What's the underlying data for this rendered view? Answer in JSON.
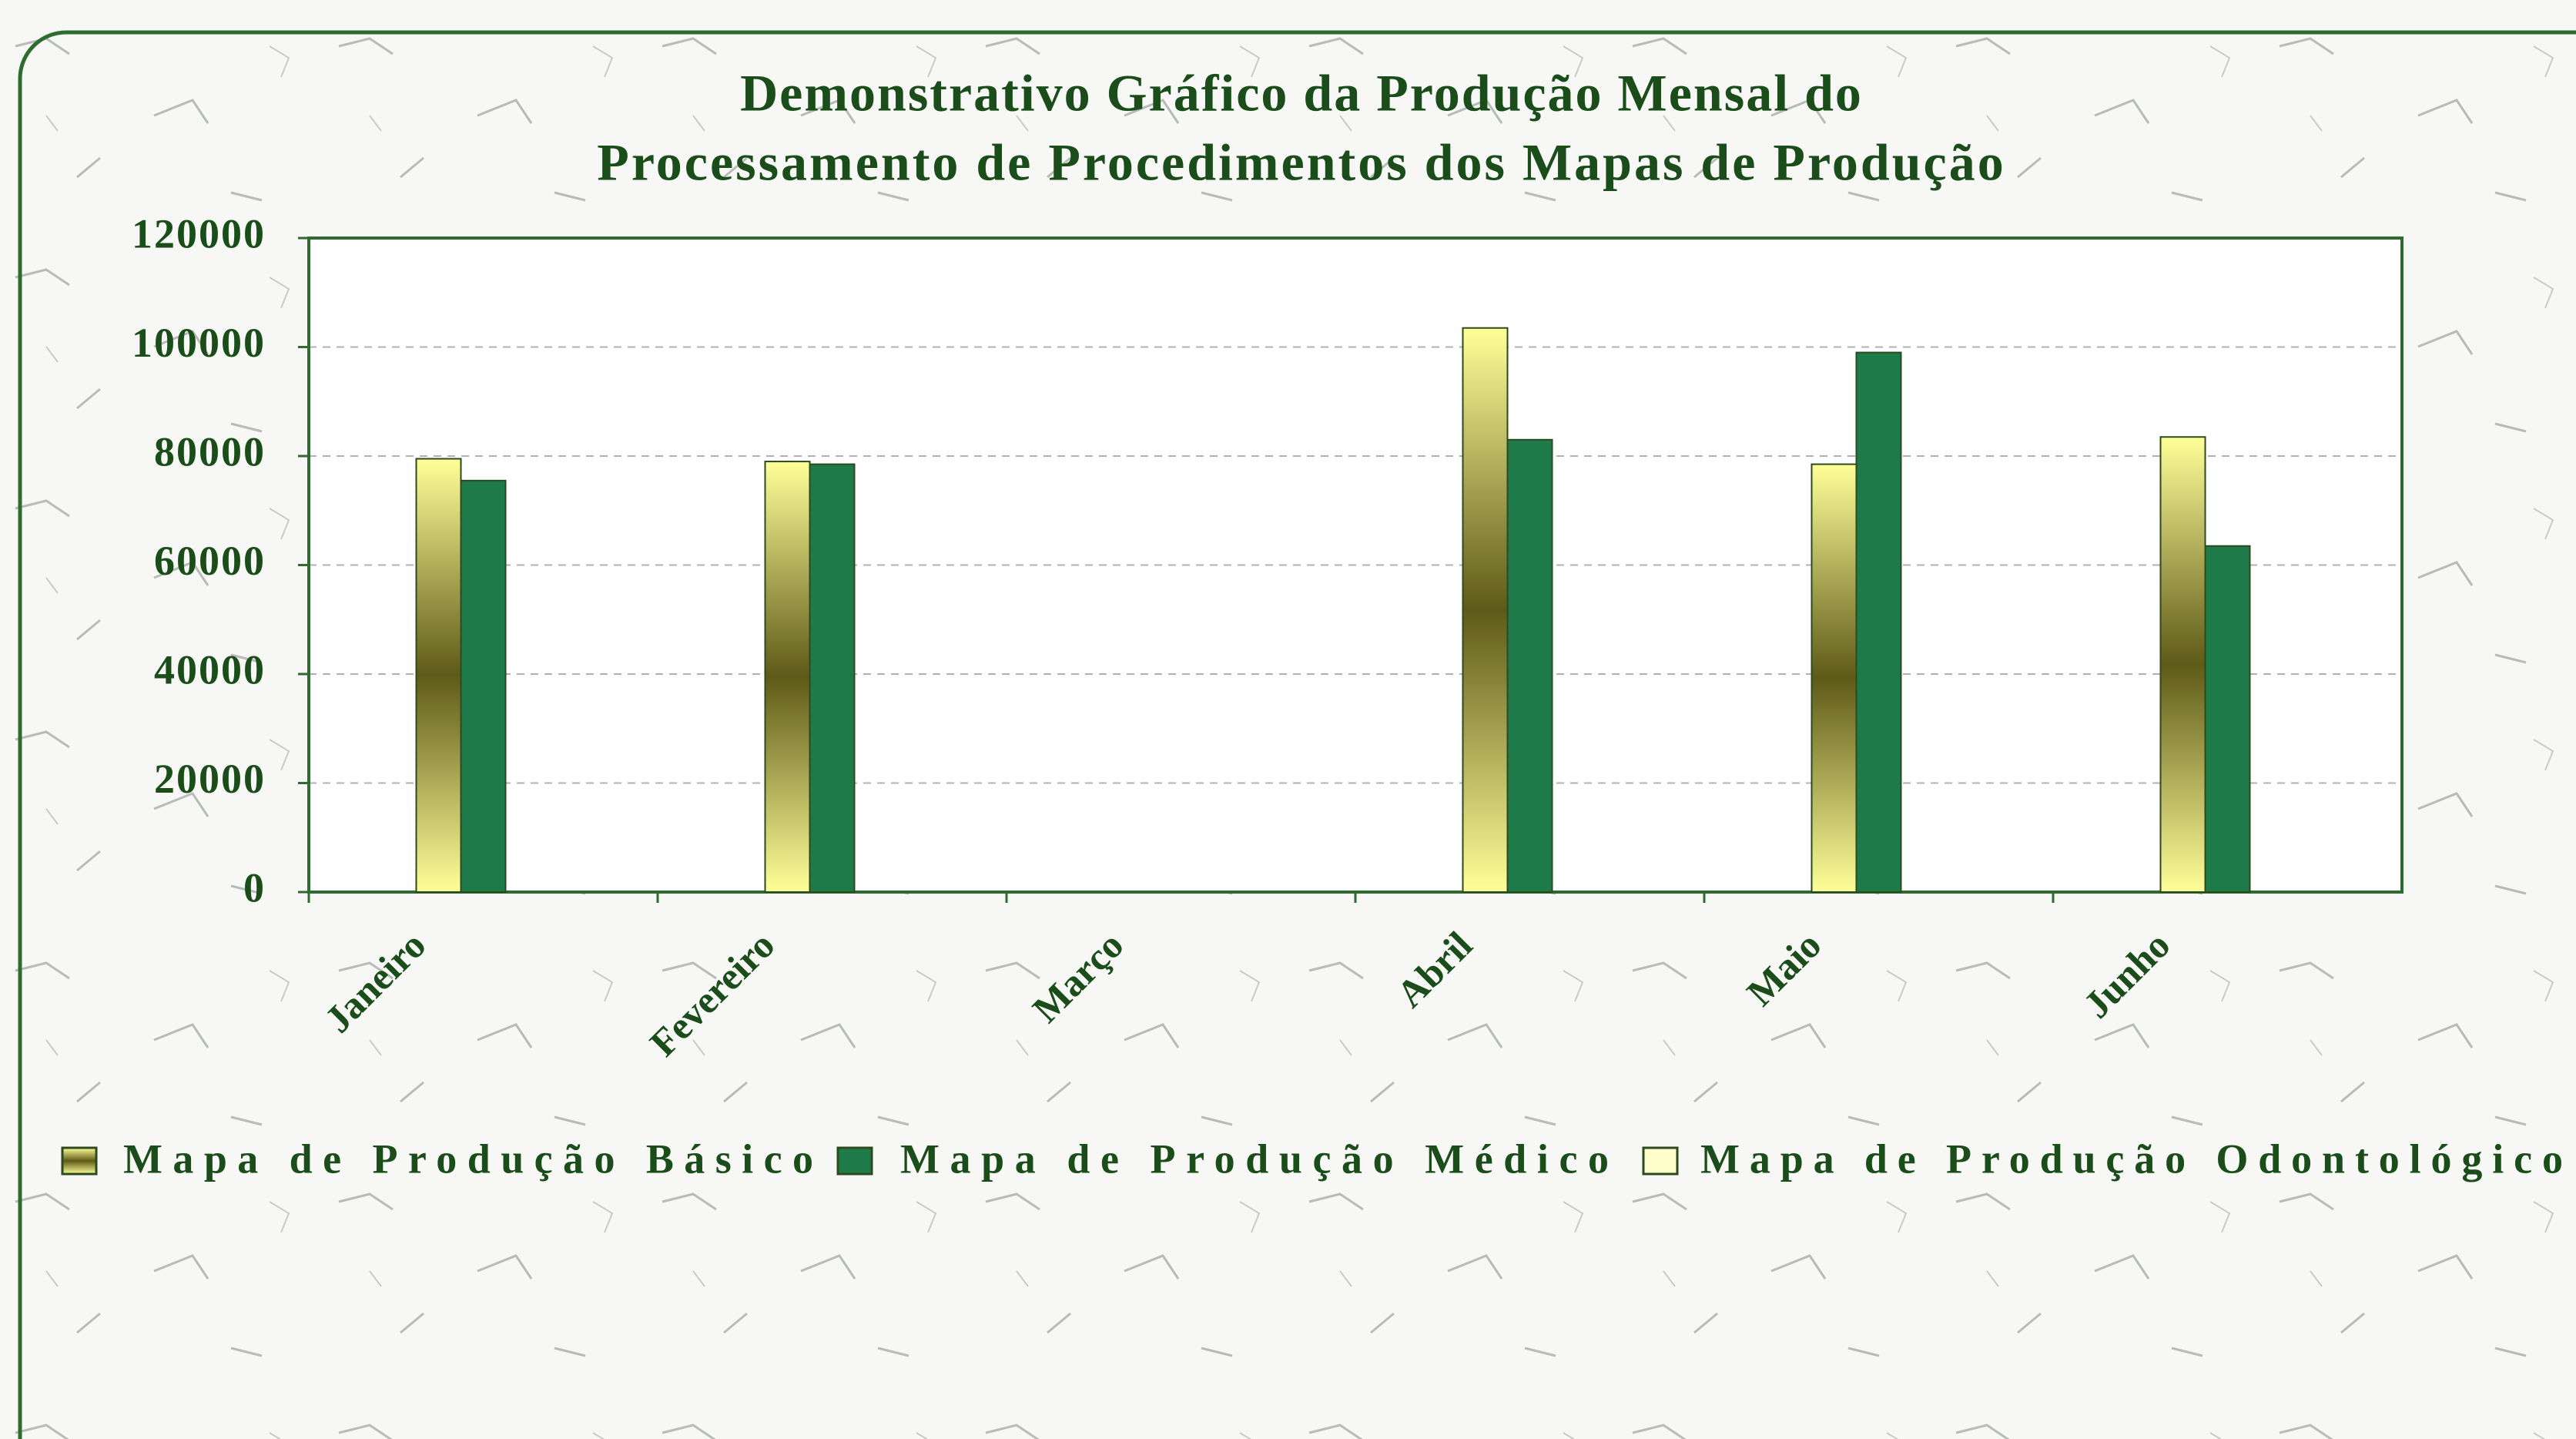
{
  "chart_data": {
    "type": "bar",
    "title": [
      "Demonstrativo Gráfico da Produção Mensal do",
      "Processamento de Procedimentos dos Mapas de Produção"
    ],
    "categories": [
      "Janeiro",
      "Fevereiro",
      "Março",
      "Abril",
      "Maio",
      "Junho"
    ],
    "series": [
      {
        "name": "Mapa de Produção Básico",
        "color": "#ffff99",
        "values": [
          79500,
          79000,
          null,
          103500,
          78500,
          83500
        ]
      },
      {
        "name": "Mapa de Produção Médico",
        "color": "#1f7a4a",
        "values": [
          75500,
          78500,
          null,
          83000,
          99000,
          63500
        ]
      },
      {
        "name": "Mapa de Produção Odontológico",
        "color": "#ffffcc",
        "values": [
          null,
          null,
          null,
          null,
          null,
          null
        ]
      }
    ],
    "ylim": [
      0,
      120000
    ],
    "yticks": [
      0,
      20000,
      40000,
      60000,
      80000,
      100000,
      120000
    ],
    "grid": true,
    "legend": "bottom"
  }
}
